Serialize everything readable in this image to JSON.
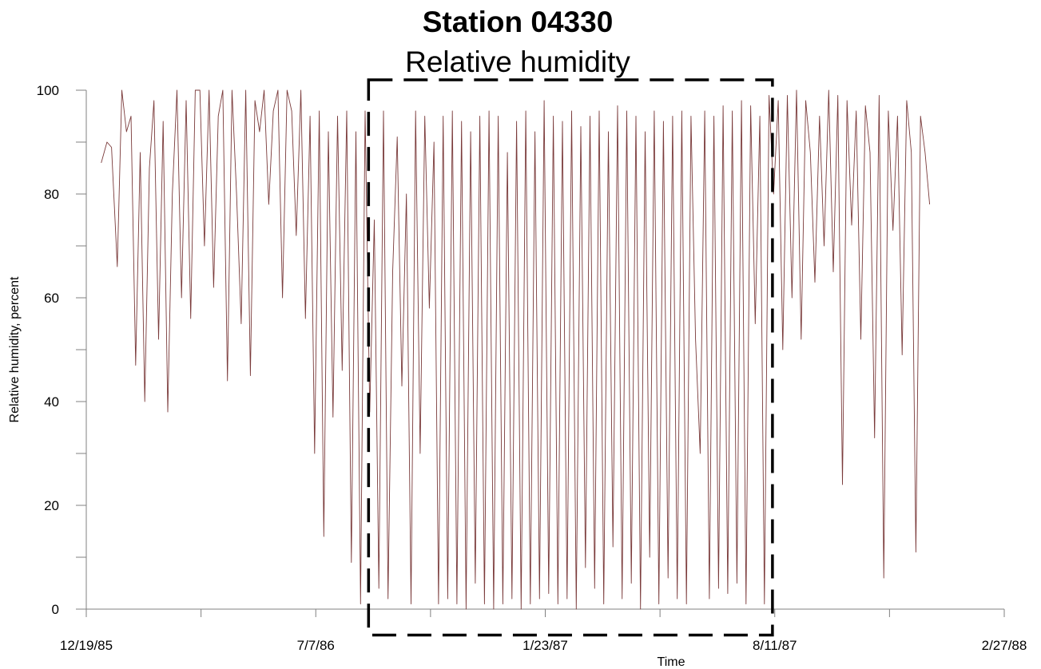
{
  "chart_data": {
    "type": "line",
    "title": "Station 04330",
    "subtitle": "Relative humidity",
    "xlabel": "Time",
    "ylabel": "Relative humidity, percent",
    "x_tick_labels": [
      "12/19/85",
      "7/7/86",
      "1/23/87",
      "8/11/87",
      "2/27/88"
    ],
    "y_tick_labels": [
      "0",
      "20",
      "40",
      "60",
      "80",
      "100"
    ],
    "xlim": [
      "1985-12-19",
      "1988-02-27"
    ],
    "ylim": [
      0,
      100
    ],
    "grid": false,
    "line_color": "#7a3a3a",
    "highlight_box": {
      "style": "dashed",
      "color": "#000000",
      "x_range": [
        "1986-08-22",
        "1987-08-09"
      ],
      "y_range": [
        -5,
        102
      ]
    },
    "series": [
      {
        "x": [
          "1986-01-01",
          "1986-01-06",
          "1986-01-10",
          "1986-01-15",
          "1986-01-19",
          "1986-01-23",
          "1986-01-27",
          "1986-01-31",
          "1986-02-04",
          "1986-02-08",
          "1986-02-12",
          "1986-02-16",
          "1986-02-20",
          "1986-02-24",
          "1986-02-28",
          "1986-03-04",
          "1986-03-08",
          "1986-03-12",
          "1986-03-16",
          "1986-03-20",
          "1986-03-24",
          "1986-03-28",
          "1986-04-01",
          "1986-04-05",
          "1986-04-09",
          "1986-04-13",
          "1986-04-17",
          "1986-04-21",
          "1986-04-25",
          "1986-04-29",
          "1986-05-03",
          "1986-05-07",
          "1986-05-11",
          "1986-05-15",
          "1986-05-19",
          "1986-05-23",
          "1986-05-27",
          "1986-05-31",
          "1986-06-04",
          "1986-06-08",
          "1986-06-12",
          "1986-06-16",
          "1986-06-20",
          "1986-06-24",
          "1986-06-28",
          "1986-07-02",
          "1986-07-06",
          "1986-07-10",
          "1986-07-14",
          "1986-07-18",
          "1986-07-22",
          "1986-07-26",
          "1986-07-30",
          "1986-08-03",
          "1986-08-07",
          "1986-08-11",
          "1986-08-15",
          "1986-08-19",
          "1986-08-23",
          "1986-08-27",
          "1986-08-31",
          "1986-09-04",
          "1986-09-08",
          "1986-09-12",
          "1986-09-16",
          "1986-09-20",
          "1986-09-24",
          "1986-09-28",
          "1986-10-02",
          "1986-10-06",
          "1986-10-10",
          "1986-10-14",
          "1986-10-18",
          "1986-10-22",
          "1986-10-26",
          "1986-10-30",
          "1986-11-03",
          "1986-11-07",
          "1986-11-11",
          "1986-11-15",
          "1986-11-19",
          "1986-11-23",
          "1986-11-27",
          "1986-12-01",
          "1986-12-05",
          "1986-12-09",
          "1986-12-13",
          "1986-12-17",
          "1986-12-21",
          "1986-12-25",
          "1986-12-29",
          "1987-01-02",
          "1987-01-06",
          "1987-01-10",
          "1987-01-14",
          "1987-01-18",
          "1987-01-22",
          "1987-01-26",
          "1987-01-30",
          "1987-02-03",
          "1987-02-07",
          "1987-02-11",
          "1987-02-15",
          "1987-02-19",
          "1987-02-23",
          "1987-02-27",
          "1987-03-03",
          "1987-03-07",
          "1987-03-11",
          "1987-03-15",
          "1987-03-19",
          "1987-03-23",
          "1987-03-27",
          "1987-03-31",
          "1987-04-04",
          "1987-04-08",
          "1987-04-12",
          "1987-04-16",
          "1987-04-20",
          "1987-04-24",
          "1987-04-28",
          "1987-05-02",
          "1987-05-06",
          "1987-05-10",
          "1987-05-14",
          "1987-05-18",
          "1987-05-22",
          "1987-05-26",
          "1987-05-30",
          "1987-06-03",
          "1987-06-07",
          "1987-06-11",
          "1987-06-15",
          "1987-06-19",
          "1987-06-23",
          "1987-06-27",
          "1987-07-01",
          "1987-07-05",
          "1987-07-09",
          "1987-07-13",
          "1987-07-17",
          "1987-07-21",
          "1987-07-25",
          "1987-07-29",
          "1987-08-02",
          "1987-08-06",
          "1987-08-10",
          "1987-08-14",
          "1987-08-18",
          "1987-08-22",
          "1987-08-26",
          "1987-08-30",
          "1987-09-03",
          "1987-09-07",
          "1987-09-11",
          "1987-09-15",
          "1987-09-19",
          "1987-09-23",
          "1987-09-27",
          "1987-10-01",
          "1987-10-05",
          "1987-10-09",
          "1987-10-13",
          "1987-10-17",
          "1987-10-21",
          "1987-10-25",
          "1987-10-29",
          "1987-11-02",
          "1987-11-06",
          "1987-11-10",
          "1987-11-14",
          "1987-11-18",
          "1987-11-22",
          "1987-11-26",
          "1987-11-30",
          "1987-12-04",
          "1987-12-08",
          "1987-12-12",
          "1987-12-16",
          "1987-12-20",
          "1987-12-24"
        ],
        "y": [
          86,
          90,
          89,
          66,
          100,
          92,
          95,
          47,
          88,
          40,
          85,
          98,
          52,
          94,
          38,
          80,
          100,
          60,
          98,
          56,
          100,
          100,
          70,
          100,
          62,
          95,
          100,
          44,
          100,
          80,
          55,
          100,
          45,
          98,
          92,
          100,
          78,
          96,
          100,
          60,
          100,
          96,
          72,
          100,
          56,
          95,
          30,
          96,
          14,
          92,
          37,
          95,
          46,
          96,
          9,
          92,
          1,
          96,
          38,
          75,
          4,
          96,
          2,
          65,
          91,
          43,
          80,
          1,
          96,
          30,
          95,
          58,
          90,
          1,
          95,
          2,
          96,
          1,
          94,
          0,
          92,
          5,
          95,
          1,
          96,
          0,
          95,
          1,
          88,
          2,
          94,
          0,
          96,
          1,
          92,
          2,
          98,
          3,
          95,
          1,
          94,
          2,
          96,
          0,
          93,
          8,
          95,
          4,
          96,
          1,
          92,
          12,
          97,
          2,
          96,
          5,
          95,
          0,
          92,
          10,
          96,
          1,
          94,
          6,
          95,
          2,
          96,
          1,
          95,
          52,
          30,
          96,
          2,
          95,
          4,
          97,
          3,
          96,
          5,
          98,
          1,
          97,
          55,
          95,
          1,
          99,
          80,
          98,
          50,
          99,
          60,
          100,
          52,
          98,
          88,
          63,
          95,
          70,
          100,
          65,
          99,
          24,
          98,
          74,
          96,
          52,
          97,
          88,
          33,
          99,
          6,
          96,
          73,
          95,
          49,
          98,
          88,
          11,
          95,
          88,
          78
        ]
      }
    ]
  }
}
